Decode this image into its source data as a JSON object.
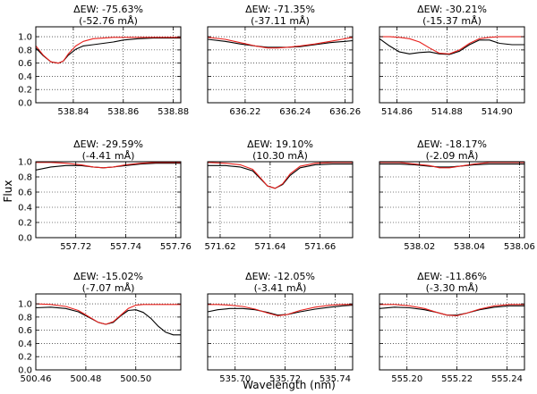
{
  "figure": {
    "xlabel": "Wavelength (nm)",
    "ylabel": "Flux"
  },
  "colors": {
    "observed": "#000000",
    "model": "#e8201c"
  },
  "chart_data": [
    {
      "type": "line",
      "title": "ΔEW: -75.63%",
      "subtitle": "(-52.76 mÅ)",
      "xlim": [
        538.825,
        538.883
      ],
      "ylim": [
        0.0,
        1.15
      ],
      "xticks": [
        "538.84",
        "538.86",
        "538.88"
      ],
      "xtick_values": [
        538.84,
        538.86,
        538.88
      ],
      "yticks": [
        "0.0",
        "0.2",
        "0.4",
        "0.6",
        "0.8",
        "1.0"
      ],
      "ytick_values": [
        0.0,
        0.2,
        0.4,
        0.6,
        0.8,
        1.0
      ],
      "series": [
        {
          "key": "observed",
          "x": [
            538.825,
            538.828,
            538.831,
            538.834,
            538.836,
            538.838,
            538.841,
            538.844,
            538.848,
            538.852,
            538.856,
            538.86,
            538.866,
            538.872,
            538.878,
            538.883
          ],
          "y": [
            0.83,
            0.71,
            0.62,
            0.6,
            0.63,
            0.72,
            0.81,
            0.86,
            0.88,
            0.9,
            0.92,
            0.95,
            0.97,
            0.98,
            0.98,
            0.98
          ]
        },
        {
          "key": "model",
          "x": [
            538.825,
            538.828,
            538.831,
            538.834,
            538.836,
            538.838,
            538.841,
            538.844,
            538.848,
            538.852,
            538.856,
            538.86,
            538.866,
            538.872,
            538.878,
            538.883
          ],
          "y": [
            0.86,
            0.72,
            0.62,
            0.6,
            0.63,
            0.74,
            0.86,
            0.93,
            0.97,
            0.98,
            0.99,
            0.99,
            0.99,
            0.99,
            0.99,
            0.99
          ]
        }
      ]
    },
    {
      "type": "line",
      "title": "ΔEW: -71.35%",
      "subtitle": "(-37.11 mÅ)",
      "xlim": [
        636.205,
        636.263
      ],
      "ylim": [
        0.0,
        1.15
      ],
      "xticks": [
        "636.22",
        "636.24",
        "636.26"
      ],
      "xtick_values": [
        636.22,
        636.24,
        636.26
      ],
      "yticks": [],
      "ytick_values": [
        0.0,
        0.2,
        0.4,
        0.6,
        0.8,
        1.0
      ],
      "series": [
        {
          "key": "observed",
          "x": [
            636.205,
            636.212,
            636.218,
            636.224,
            636.229,
            636.233,
            636.237,
            636.242,
            636.248,
            636.254,
            636.26,
            636.263
          ],
          "y": [
            0.96,
            0.93,
            0.89,
            0.86,
            0.84,
            0.84,
            0.84,
            0.85,
            0.88,
            0.91,
            0.93,
            0.94
          ]
        },
        {
          "key": "model",
          "x": [
            636.205,
            636.212,
            636.218,
            636.224,
            636.229,
            636.233,
            636.237,
            636.242,
            636.248,
            636.254,
            636.26,
            636.263
          ],
          "y": [
            0.99,
            0.96,
            0.91,
            0.86,
            0.83,
            0.83,
            0.84,
            0.86,
            0.89,
            0.93,
            0.97,
            0.99
          ]
        }
      ]
    },
    {
      "type": "line",
      "title": "ΔEW: -30.21%",
      "subtitle": "(-15.37 mÅ)",
      "xlim": [
        514.853,
        514.911
      ],
      "ylim": [
        0.0,
        1.15
      ],
      "xticks": [
        "514.86",
        "514.88",
        "514.90"
      ],
      "xtick_values": [
        514.86,
        514.88,
        514.9
      ],
      "yticks": [],
      "ytick_values": [
        0.0,
        0.2,
        0.4,
        0.6,
        0.8,
        1.0
      ],
      "series": [
        {
          "key": "observed",
          "x": [
            514.853,
            514.857,
            514.861,
            514.865,
            514.869,
            514.873,
            514.877,
            514.881,
            514.885,
            514.889,
            514.893,
            514.897,
            514.901,
            514.906,
            514.911
          ],
          "y": [
            0.97,
            0.86,
            0.77,
            0.74,
            0.76,
            0.77,
            0.74,
            0.73,
            0.78,
            0.88,
            0.95,
            0.95,
            0.9,
            0.88,
            0.88
          ]
        },
        {
          "key": "model",
          "x": [
            514.853,
            514.857,
            514.861,
            514.865,
            514.869,
            514.873,
            514.877,
            514.881,
            514.885,
            514.889,
            514.893,
            514.897,
            514.901,
            514.906,
            514.911
          ],
          "y": [
            1.0,
            1.0,
            0.99,
            0.97,
            0.92,
            0.83,
            0.75,
            0.74,
            0.8,
            0.9,
            0.97,
            0.99,
            1.0,
            1.0,
            1.0
          ]
        }
      ]
    },
    {
      "type": "line",
      "title": "ΔEW: -29.59%",
      "subtitle": "(-4.41 mÅ)",
      "xlim": [
        557.704,
        557.762
      ],
      "ylim": [
        0.0,
        1.0
      ],
      "xticks": [
        "557.72",
        "557.74",
        "557.76"
      ],
      "xtick_values": [
        557.72,
        557.74,
        557.76
      ],
      "yticks": [
        "0.0",
        "0.2",
        "0.4",
        "0.6",
        "0.8",
        "1.0"
      ],
      "ytick_values": [
        0.0,
        0.2,
        0.4,
        0.6,
        0.8,
        1.0
      ],
      "series": [
        {
          "key": "observed",
          "x": [
            557.704,
            557.71,
            557.716,
            557.722,
            557.727,
            557.731,
            557.735,
            557.74,
            557.746,
            557.752,
            557.758,
            557.762
          ],
          "y": [
            0.89,
            0.93,
            0.95,
            0.95,
            0.93,
            0.92,
            0.93,
            0.95,
            0.97,
            0.98,
            0.98,
            0.98
          ]
        },
        {
          "key": "model",
          "x": [
            557.704,
            557.71,
            557.716,
            557.722,
            557.727,
            557.731,
            557.735,
            557.74,
            557.746,
            557.752,
            557.758,
            557.762
          ],
          "y": [
            0.99,
            0.99,
            0.98,
            0.96,
            0.93,
            0.92,
            0.93,
            0.96,
            0.98,
            0.99,
            0.99,
            0.99
          ]
        }
      ]
    },
    {
      "type": "line",
      "title": "ΔEW: 19.10%",
      "subtitle": "(10.30 mÅ)",
      "xlim": [
        571.615,
        571.673
      ],
      "ylim": [
        0.0,
        1.0
      ],
      "xticks": [
        "571.62",
        "571.64",
        "571.66"
      ],
      "xtick_values": [
        571.62,
        571.64,
        571.66
      ],
      "yticks": [],
      "ytick_values": [
        0.0,
        0.2,
        0.4,
        0.6,
        0.8,
        1.0
      ],
      "series": [
        {
          "key": "observed",
          "x": [
            571.615,
            571.622,
            571.628,
            571.633,
            571.636,
            571.639,
            571.642,
            571.645,
            571.648,
            571.652,
            571.658,
            571.665,
            571.673
          ],
          "y": [
            0.95,
            0.95,
            0.93,
            0.88,
            0.78,
            0.68,
            0.65,
            0.7,
            0.82,
            0.92,
            0.96,
            0.97,
            0.97
          ]
        },
        {
          "key": "model",
          "x": [
            571.615,
            571.622,
            571.628,
            571.633,
            571.636,
            571.639,
            571.642,
            571.645,
            571.648,
            571.652,
            571.658,
            571.665,
            571.673
          ],
          "y": [
            0.99,
            0.98,
            0.96,
            0.9,
            0.79,
            0.68,
            0.65,
            0.71,
            0.84,
            0.94,
            0.98,
            0.99,
            0.99
          ]
        }
      ]
    },
    {
      "type": "line",
      "title": "ΔEW: -18.17%",
      "subtitle": "(-2.09 mÅ)",
      "xlim": [
        538.004,
        538.062
      ],
      "ylim": [
        0.0,
        1.0
      ],
      "xticks": [
        "538.02",
        "538.04",
        "538.06"
      ],
      "xtick_values": [
        538.02,
        538.04,
        538.06
      ],
      "yticks": [],
      "ytick_values": [
        0.0,
        0.2,
        0.4,
        0.6,
        0.8,
        1.0
      ],
      "series": [
        {
          "key": "observed",
          "x": [
            538.004,
            538.012,
            538.018,
            538.024,
            538.028,
            538.032,
            538.036,
            538.042,
            538.048,
            538.054,
            538.062
          ],
          "y": [
            0.97,
            0.97,
            0.96,
            0.94,
            0.93,
            0.93,
            0.94,
            0.96,
            0.97,
            0.97,
            0.97
          ]
        },
        {
          "key": "model",
          "x": [
            538.004,
            538.012,
            538.018,
            538.024,
            538.028,
            538.032,
            538.036,
            538.042,
            538.048,
            538.054,
            538.062
          ],
          "y": [
            0.99,
            0.99,
            0.97,
            0.95,
            0.92,
            0.92,
            0.94,
            0.97,
            0.99,
            0.99,
            0.99
          ]
        }
      ]
    },
    {
      "type": "line",
      "title": "ΔEW: -15.02%",
      "subtitle": "(-7.07 mÅ)",
      "xlim": [
        500.46,
        500.518
      ],
      "ylim": [
        0.0,
        1.15
      ],
      "xticks": [
        "500.46",
        "500.48",
        "500.50"
      ],
      "xtick_values": [
        500.46,
        500.48,
        500.5
      ],
      "yticks": [
        "0.0",
        "0.2",
        "0.4",
        "0.6",
        "0.8",
        "1.0"
      ],
      "ytick_values": [
        0.0,
        0.2,
        0.4,
        0.6,
        0.8,
        1.0
      ],
      "series": [
        {
          "key": "observed",
          "x": [
            500.46,
            500.466,
            500.472,
            500.477,
            500.481,
            500.485,
            500.488,
            500.491,
            500.494,
            500.497,
            500.5,
            500.503,
            500.506,
            500.509,
            500.512,
            500.515,
            500.518
          ],
          "y": [
            0.94,
            0.95,
            0.93,
            0.88,
            0.8,
            0.72,
            0.69,
            0.72,
            0.82,
            0.9,
            0.91,
            0.87,
            0.78,
            0.66,
            0.57,
            0.53,
            0.53
          ]
        },
        {
          "key": "model",
          "x": [
            500.46,
            500.466,
            500.472,
            500.477,
            500.481,
            500.485,
            500.488,
            500.491,
            500.494,
            500.497,
            500.5,
            500.503,
            500.506,
            500.509,
            500.512,
            500.515,
            500.518
          ],
          "y": [
            1.0,
            0.99,
            0.96,
            0.9,
            0.81,
            0.72,
            0.69,
            0.73,
            0.83,
            0.93,
            0.98,
            0.99,
            0.99,
            0.99,
            0.99,
            0.99,
            0.99
          ]
        }
      ]
    },
    {
      "type": "line",
      "title": "ΔEW: -12.05%",
      "subtitle": "(-3.41 mÅ)",
      "xlim": [
        535.689,
        535.747
      ],
      "ylim": [
        0.0,
        1.15
      ],
      "xticks": [
        "535.70",
        "535.72",
        "535.74"
      ],
      "xtick_values": [
        535.7,
        535.72,
        535.74
      ],
      "yticks": [],
      "ytick_values": [
        0.0,
        0.2,
        0.4,
        0.6,
        0.8,
        1.0
      ],
      "series": [
        {
          "key": "observed",
          "x": [
            535.689,
            535.693,
            535.698,
            535.703,
            535.708,
            535.713,
            535.717,
            535.721,
            535.726,
            535.732,
            535.738,
            535.743,
            535.747
          ],
          "y": [
            0.88,
            0.91,
            0.93,
            0.93,
            0.91,
            0.87,
            0.83,
            0.84,
            0.88,
            0.92,
            0.95,
            0.97,
            0.98
          ]
        },
        {
          "key": "model",
          "x": [
            535.689,
            535.693,
            535.698,
            535.703,
            535.708,
            535.713,
            535.717,
            535.721,
            535.726,
            535.732,
            535.738,
            535.743,
            535.747
          ],
          "y": [
            0.99,
            0.99,
            0.98,
            0.96,
            0.92,
            0.86,
            0.82,
            0.84,
            0.9,
            0.95,
            0.98,
            0.99,
            0.99
          ]
        }
      ]
    },
    {
      "type": "line",
      "title": "ΔEW: -11.86%",
      "subtitle": "(-3.30 mÅ)",
      "xlim": [
        555.189,
        555.247
      ],
      "ylim": [
        0.0,
        1.15
      ],
      "xticks": [
        "555.20",
        "555.22",
        "555.24"
      ],
      "xtick_values": [
        555.2,
        555.22,
        555.24
      ],
      "yticks": [],
      "ytick_values": [
        0.0,
        0.2,
        0.4,
        0.6,
        0.8,
        1.0
      ],
      "series": [
        {
          "key": "observed",
          "x": [
            555.189,
            555.195,
            555.201,
            555.207,
            555.212,
            555.216,
            555.22,
            555.224,
            555.229,
            555.235,
            555.241,
            555.247
          ],
          "y": [
            0.93,
            0.95,
            0.94,
            0.91,
            0.87,
            0.83,
            0.83,
            0.86,
            0.91,
            0.95,
            0.97,
            0.97
          ]
        },
        {
          "key": "model",
          "x": [
            555.189,
            555.195,
            555.201,
            555.207,
            555.212,
            555.216,
            555.22,
            555.224,
            555.229,
            555.235,
            555.241,
            555.247
          ],
          "y": [
            0.99,
            0.99,
            0.97,
            0.93,
            0.87,
            0.83,
            0.82,
            0.86,
            0.92,
            0.97,
            0.99,
            0.99
          ]
        }
      ]
    }
  ]
}
